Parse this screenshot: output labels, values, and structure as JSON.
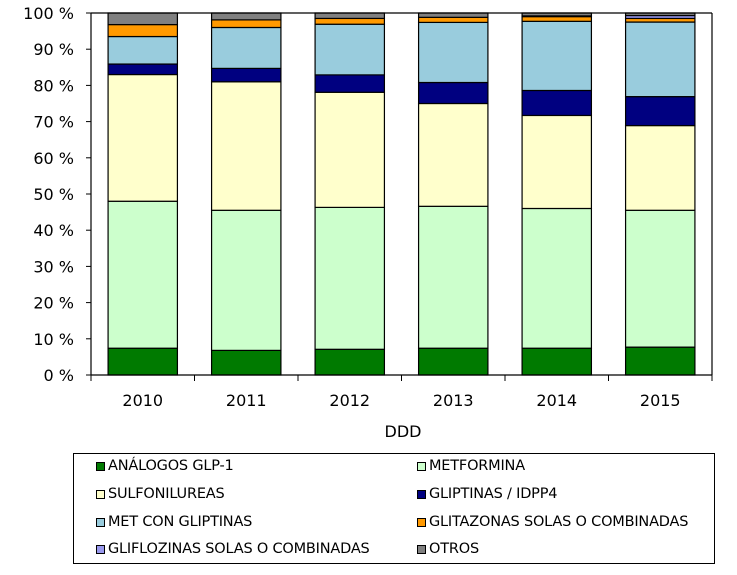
{
  "chart_data": {
    "type": "bar",
    "stacked": true,
    "percent_stacked": true,
    "title": "",
    "xlabel": "DDD",
    "ylabel": "",
    "ylim": [
      0,
      100
    ],
    "yticks": [
      0,
      10,
      20,
      30,
      40,
      50,
      60,
      70,
      80,
      90,
      100
    ],
    "ytick_labels": [
      "0 %",
      "10 %",
      "20 %",
      "30 %",
      "40 %",
      "50 %",
      "60 %",
      "70 %",
      "80 %",
      "90 %",
      "100 %"
    ],
    "grid": false,
    "legend_position": "bottom",
    "categories": [
      "2010",
      "2011",
      "2012",
      "2013",
      "2014",
      "2015"
    ],
    "series": [
      {
        "name": "ANÁLOGOS GLP-1",
        "color": "#007a00",
        "values": [
          7.4,
          6.8,
          7.1,
          7.4,
          7.4,
          7.7
        ]
      },
      {
        "name": "METFORMINA",
        "color": "#ccffcc",
        "values": [
          40.6,
          38.7,
          39.2,
          39.2,
          38.6,
          37.8
        ]
      },
      {
        "name": "SULFONILUREAS",
        "color": "#ffffcc",
        "values": [
          35.0,
          35.5,
          31.8,
          28.4,
          25.7,
          23.4
        ]
      },
      {
        "name": "GLIPTINAS / IDPP4",
        "color": "#000080",
        "values": [
          2.9,
          3.7,
          4.8,
          5.8,
          6.9,
          8.0
        ]
      },
      {
        "name": "MET CON GLIPTINAS",
        "color": "#99ccdd",
        "values": [
          7.6,
          11.3,
          14.0,
          16.6,
          19.1,
          20.6
        ]
      },
      {
        "name": "GLITAZONAS SOLAS O COMBINADAS",
        "color": "#ff9900",
        "values": [
          3.3,
          2.1,
          1.6,
          1.4,
          1.3,
          1.0
        ]
      },
      {
        "name": "GLIFLOZINAS SOLAS O COMBINADAS",
        "color": "#9999ee",
        "values": [
          0.0,
          0.0,
          0.0,
          0.0,
          0.2,
          0.8
        ]
      },
      {
        "name": "OTROS",
        "color": "#808080",
        "values": [
          3.2,
          1.9,
          1.5,
          1.2,
          0.8,
          0.7
        ]
      }
    ]
  },
  "legend": {
    "items": [
      {
        "label": "ANÁLOGOS GLP-1",
        "color": "#007a00"
      },
      {
        "label": "METFORMINA",
        "color": "#ccffcc"
      },
      {
        "label": "SULFONILUREAS",
        "color": "#ffffcc"
      },
      {
        "label": "GLIPTINAS / IDPP4",
        "color": "#000080"
      },
      {
        "label": "MET CON GLIPTINAS",
        "color": "#99ccdd"
      },
      {
        "label": "GLITAZONAS SOLAS O COMBINADAS",
        "color": "#ff9900"
      },
      {
        "label": "GLIFLOZINAS SOLAS O COMBINADAS",
        "color": "#9999ee"
      },
      {
        "label": "OTROS",
        "color": "#808080"
      }
    ]
  }
}
